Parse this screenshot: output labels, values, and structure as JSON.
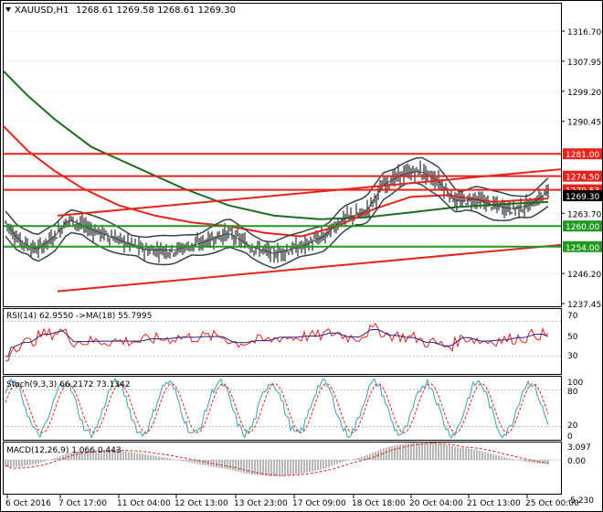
{
  "header": {
    "symbol": "XAUUSD,H1",
    "ohlc": "1268.61 1269.58 1268.61 1269.30"
  },
  "price_axis": {
    "ticks": [
      "1316.70",
      "1307.95",
      "1299.20",
      "1290.45",
      "1281.00",
      "1274.50",
      "1270.53",
      "1263.70",
      "1260.00",
      "1254.00",
      "1246.20",
      "1237.45"
    ],
    "plain_ticks": [
      {
        "label": "1316.70",
        "value": 1316.7
      },
      {
        "label": "1307.95",
        "value": 1307.95
      },
      {
        "label": "1299.20",
        "value": 1299.2
      },
      {
        "label": "1290.45",
        "value": 1290.45
      },
      {
        "label": "1263.70",
        "value": 1263.7
      },
      {
        "label": "1246.20",
        "value": 1246.2
      },
      {
        "label": "1237.45",
        "value": 1237.45
      }
    ],
    "current_price": "1269.30"
  },
  "levels": [
    {
      "label": "1281.00",
      "value": 1281.0,
      "color": "#e8231c",
      "type": "resistance"
    },
    {
      "label": "1274.50",
      "value": 1274.5,
      "color": "#e8231c",
      "type": "resistance"
    },
    {
      "label": "1270.53",
      "value": 1270.53,
      "color": "#e8231c",
      "type": "resistance"
    },
    {
      "label": "1260.00",
      "value": 1260.0,
      "color": "#1f9a1f",
      "type": "support"
    },
    {
      "label": "1254.00",
      "value": 1254.0,
      "color": "#1f9a1f",
      "type": "support"
    }
  ],
  "rsi": {
    "label": "RSI(14) 62.9550 ->MA(18) 55.7995",
    "ticks": [
      "70",
      "50",
      "30"
    ]
  },
  "stoch": {
    "label": "Stoch(9,3,3) 66.2172 73.1342",
    "ticks": [
      "100",
      "80",
      "20",
      "0"
    ]
  },
  "macd": {
    "label": "MACD(12,26,9) 1.066 0.443",
    "ticks": [
      "3.097",
      "0.00",
      "-5.230"
    ]
  },
  "time_axis": {
    "labels": [
      "6 Oct 2016",
      "7 Oct 17:00",
      "11 Oct 04:00",
      "12 Oct 13:00",
      "13 Oct 23:00",
      "17 Oct 09:00",
      "18 Oct 18:00",
      "20 Oct 04:00",
      "21 Oct 13:00",
      "25 Oct 00:00"
    ]
  },
  "colors": {
    "candles": "#000000",
    "ma_fast": "#e8231c",
    "ma_slow": "#1f6e1f",
    "bollinger": "#2e4650",
    "resistance": "#e8231c",
    "support": "#1f9a1f",
    "trendline": "#e8231c",
    "rsi_line": "#e8231c",
    "rsi_ma": "#1f1f8f",
    "stoch_main": "#3aa0b8",
    "stoch_signal": "#e8231c",
    "macd_hist": "#888888",
    "macd_signal": "#e8231c"
  }
}
